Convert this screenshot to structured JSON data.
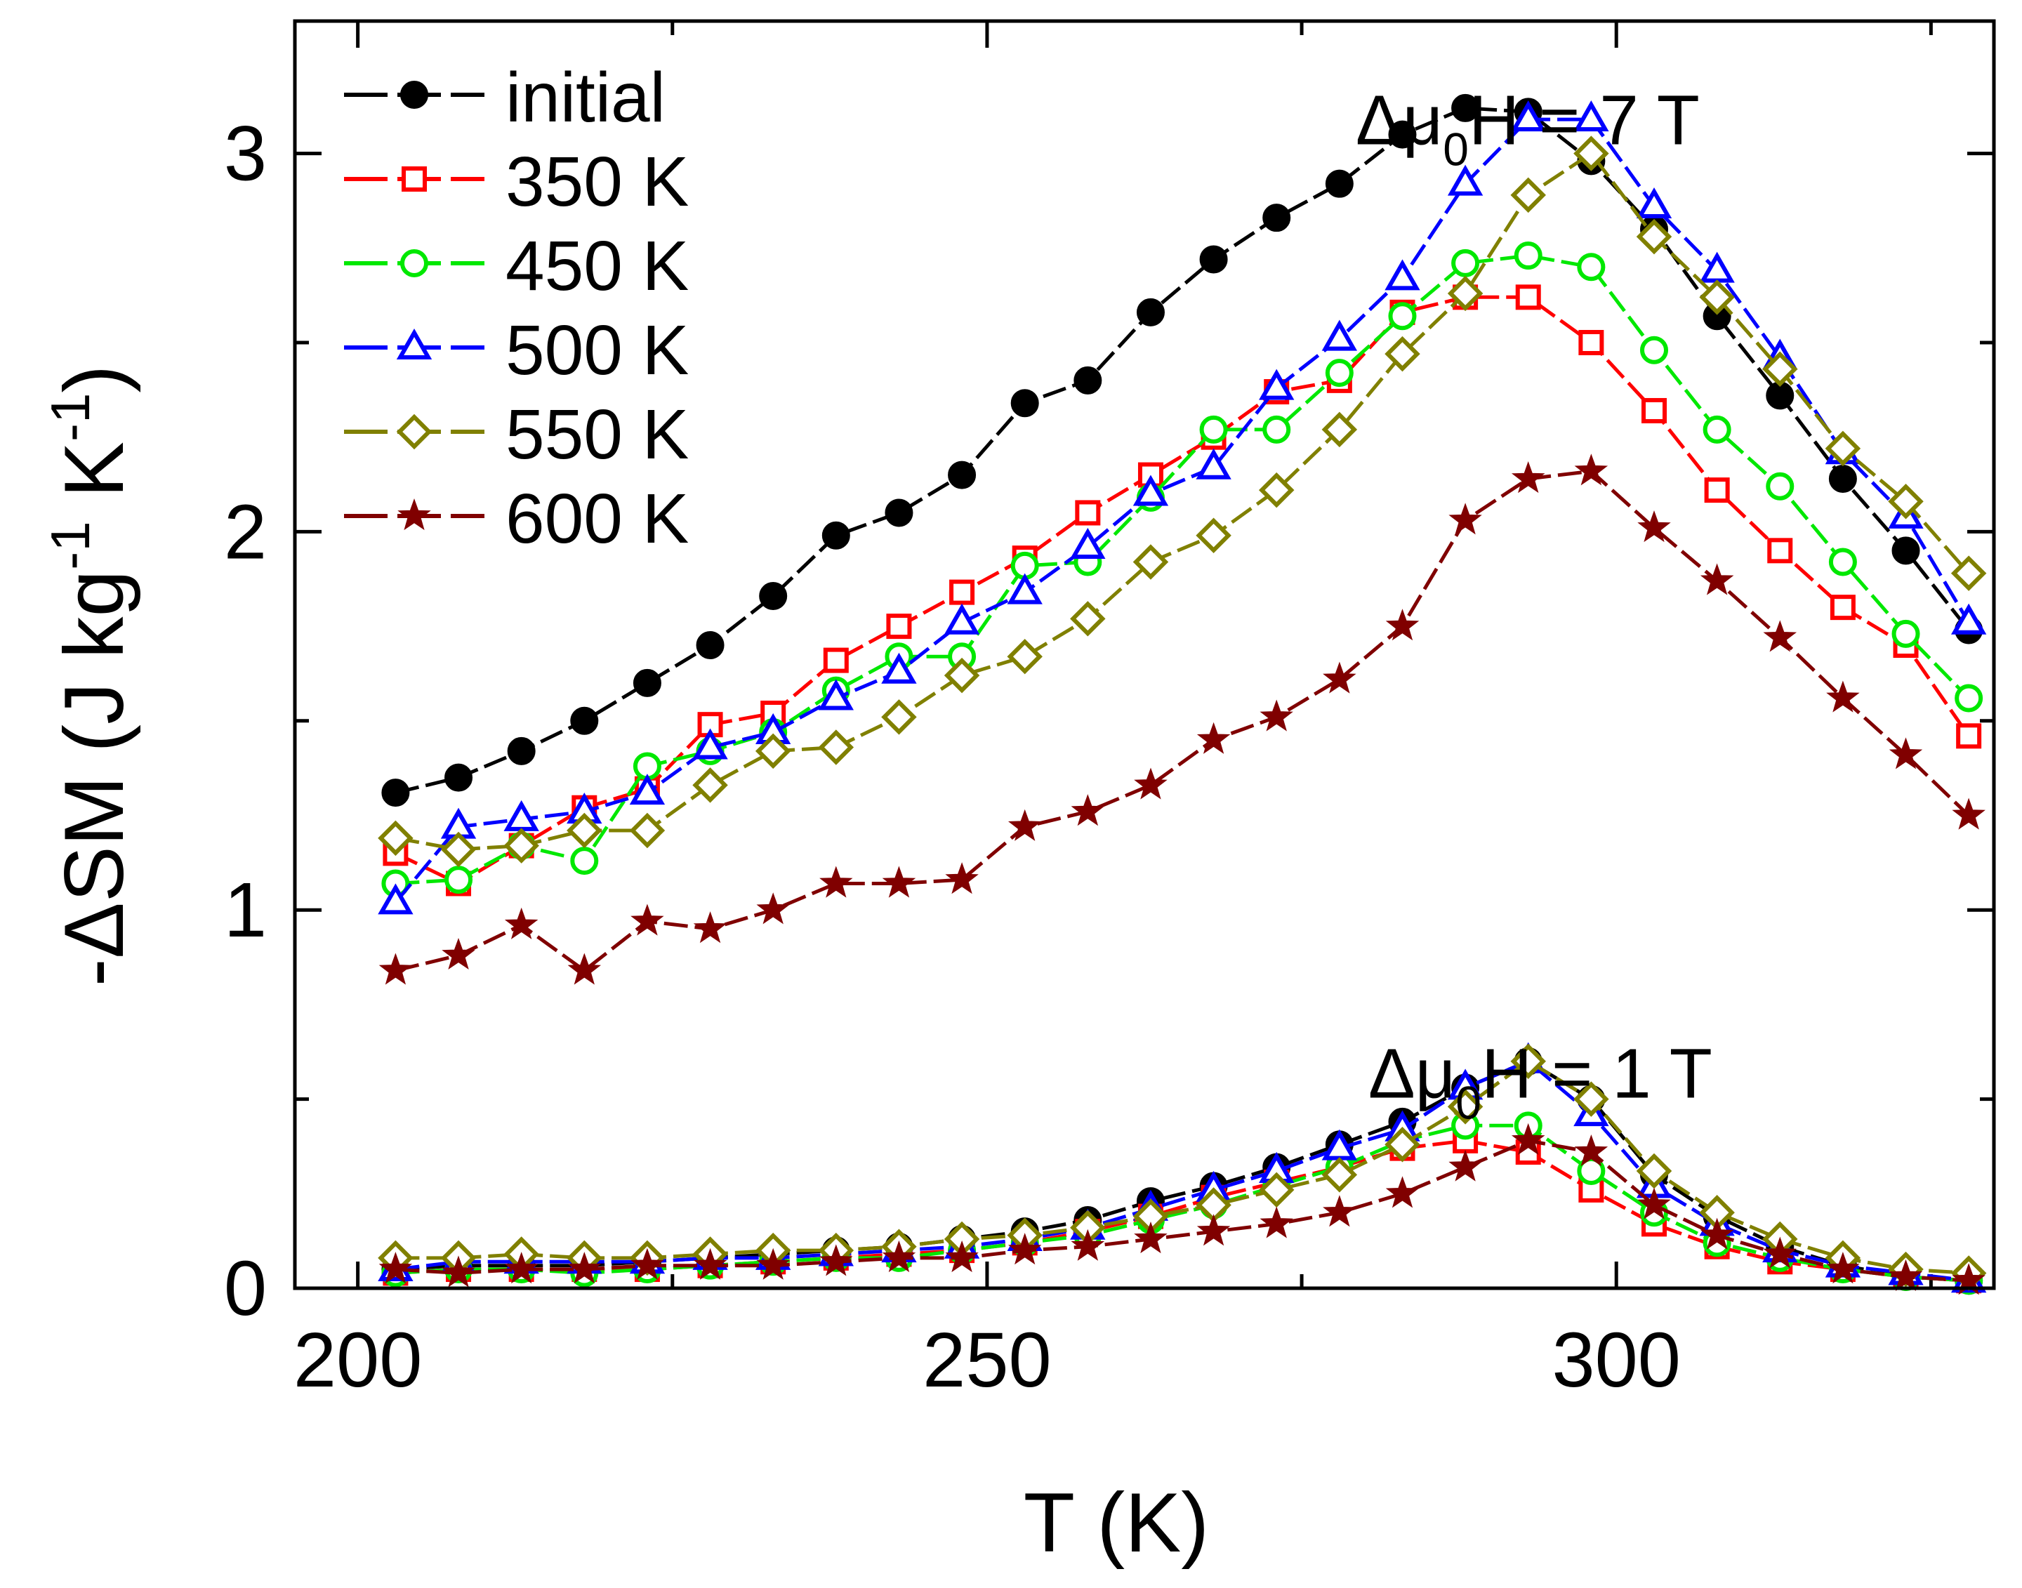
{
  "chart_data": {
    "type": "line",
    "xlabel": "T (K)",
    "ylabel": {
      "prefix": "-ΔS",
      "sub": "M",
      "unit_a": " (J kg",
      "sup_a": "-1",
      "unit_b": " K",
      "sup_b": "-1",
      "unit_c": ")"
    },
    "xlim": [
      195,
      330
    ],
    "ylim": [
      0,
      3.35
    ],
    "x_major_ticks": [
      200,
      250,
      300
    ],
    "x_minor_ticks": [
      225,
      275,
      325
    ],
    "y_major_ticks": [
      0,
      1,
      2,
      3
    ],
    "y_minor_ticks": [
      0.5,
      1.5,
      2.5
    ],
    "x_tick_labels": [
      "200",
      "250",
      "300"
    ],
    "y_tick_labels": [
      "0",
      "1",
      "2",
      "3"
    ],
    "annotations": [
      {
        "prefix": "Δμ",
        "sub": "0",
        "suffix": "H = 7 T",
        "x": 291,
        "y": 3.08
      },
      {
        "prefix": "Δμ",
        "sub": "0",
        "suffix": "H = 1 T",
        "x": 292,
        "y": 0.56
      }
    ],
    "legend_position": "top-left",
    "x": [
      203,
      208,
      213,
      218,
      223,
      228,
      233,
      238,
      243,
      248,
      253,
      258,
      263,
      268,
      273,
      278,
      283,
      288,
      293,
      298,
      303,
      308,
      313,
      318,
      323,
      328
    ],
    "series": [
      {
        "name": "initial",
        "color": "#000000",
        "marker": "filled-circle",
        "values_7T": [
          1.31,
          1.35,
          1.42,
          1.5,
          1.6,
          1.7,
          1.83,
          1.99,
          2.05,
          2.15,
          2.34,
          2.4,
          2.58,
          2.72,
          2.83,
          2.92,
          3.05,
          3.12,
          3.11,
          2.98,
          2.8,
          2.57,
          2.36,
          2.14,
          1.95,
          1.74
        ],
        "values_1T": [
          0.05,
          0.06,
          0.06,
          0.06,
          0.07,
          0.08,
          0.09,
          0.1,
          0.11,
          0.13,
          0.15,
          0.18,
          0.23,
          0.27,
          0.32,
          0.38,
          0.44,
          0.53,
          0.6,
          0.5,
          0.3,
          0.19,
          0.11,
          0.06,
          0.03,
          0.02
        ]
      },
      {
        "name": "350 K",
        "color": "#ff0000",
        "marker": "open-square",
        "values_7T": [
          1.15,
          1.07,
          1.17,
          1.27,
          1.32,
          1.49,
          1.52,
          1.66,
          1.75,
          1.84,
          1.93,
          2.05,
          2.15,
          2.25,
          2.37,
          2.4,
          2.58,
          2.62,
          2.62,
          2.5,
          2.32,
          2.11,
          1.95,
          1.8,
          1.7,
          1.46
        ],
        "values_1T": [
          0.04,
          0.05,
          0.05,
          0.05,
          0.05,
          0.06,
          0.07,
          0.08,
          0.09,
          0.1,
          0.12,
          0.15,
          0.19,
          0.24,
          0.28,
          0.32,
          0.37,
          0.39,
          0.36,
          0.26,
          0.17,
          0.11,
          0.07,
          0.05,
          0.03,
          0.02
        ]
      },
      {
        "name": "450 K",
        "color": "#00e800",
        "marker": "open-circle",
        "values_7T": [
          1.07,
          1.08,
          1.17,
          1.13,
          1.38,
          1.42,
          1.47,
          1.58,
          1.67,
          1.67,
          1.91,
          1.92,
          2.09,
          2.27,
          2.27,
          2.42,
          2.57,
          2.71,
          2.73,
          2.7,
          2.48,
          2.27,
          2.12,
          1.92,
          1.73,
          1.56
        ],
        "values_1T": [
          0.04,
          0.05,
          0.05,
          0.04,
          0.05,
          0.06,
          0.07,
          0.08,
          0.08,
          0.1,
          0.12,
          0.14,
          0.18,
          0.22,
          0.27,
          0.32,
          0.39,
          0.43,
          0.43,
          0.31,
          0.2,
          0.12,
          0.08,
          0.05,
          0.03,
          0.02
        ]
      },
      {
        "name": "500 K",
        "color": "#0000ff",
        "marker": "open-triangle",
        "values_7T": [
          1.02,
          1.22,
          1.24,
          1.26,
          1.31,
          1.43,
          1.47,
          1.56,
          1.63,
          1.76,
          1.84,
          1.96,
          2.1,
          2.17,
          2.38,
          2.51,
          2.67,
          2.92,
          3.09,
          3.09,
          2.86,
          2.69,
          2.46,
          2.21,
          2.04,
          1.76
        ],
        "values_1T": [
          0.05,
          0.07,
          0.07,
          0.07,
          0.07,
          0.08,
          0.08,
          0.09,
          0.1,
          0.11,
          0.13,
          0.16,
          0.21,
          0.26,
          0.31,
          0.37,
          0.42,
          0.53,
          0.6,
          0.46,
          0.27,
          0.17,
          0.1,
          0.06,
          0.04,
          0.02
        ]
      },
      {
        "name": "550 K",
        "color": "#808000",
        "marker": "open-diamond",
        "values_7T": [
          1.19,
          1.16,
          1.17,
          1.21,
          1.21,
          1.33,
          1.42,
          1.43,
          1.51,
          1.62,
          1.67,
          1.77,
          1.92,
          1.99,
          2.11,
          2.27,
          2.47,
          2.63,
          2.89,
          3.0,
          2.78,
          2.62,
          2.43,
          2.22,
          2.08,
          1.89
        ],
        "values_1T": [
          0.08,
          0.08,
          0.09,
          0.08,
          0.08,
          0.09,
          0.1,
          0.1,
          0.11,
          0.13,
          0.14,
          0.16,
          0.19,
          0.22,
          0.26,
          0.3,
          0.38,
          0.48,
          0.6,
          0.5,
          0.31,
          0.2,
          0.13,
          0.08,
          0.05,
          0.04
        ]
      },
      {
        "name": "600 K",
        "color": "#800000",
        "marker": "filled-star",
        "values_7T": [
          0.84,
          0.88,
          0.96,
          0.84,
          0.97,
          0.95,
          1.0,
          1.07,
          1.07,
          1.08,
          1.22,
          1.26,
          1.33,
          1.45,
          1.51,
          1.61,
          1.75,
          2.03,
          2.14,
          2.16,
          2.01,
          1.87,
          1.72,
          1.56,
          1.41,
          1.25
        ],
        "values_1T": [
          0.05,
          0.04,
          0.05,
          0.05,
          0.06,
          0.06,
          0.06,
          0.07,
          0.08,
          0.08,
          0.1,
          0.11,
          0.13,
          0.15,
          0.17,
          0.2,
          0.25,
          0.32,
          0.39,
          0.36,
          0.22,
          0.14,
          0.09,
          0.05,
          0.03,
          0.02
        ]
      }
    ]
  }
}
